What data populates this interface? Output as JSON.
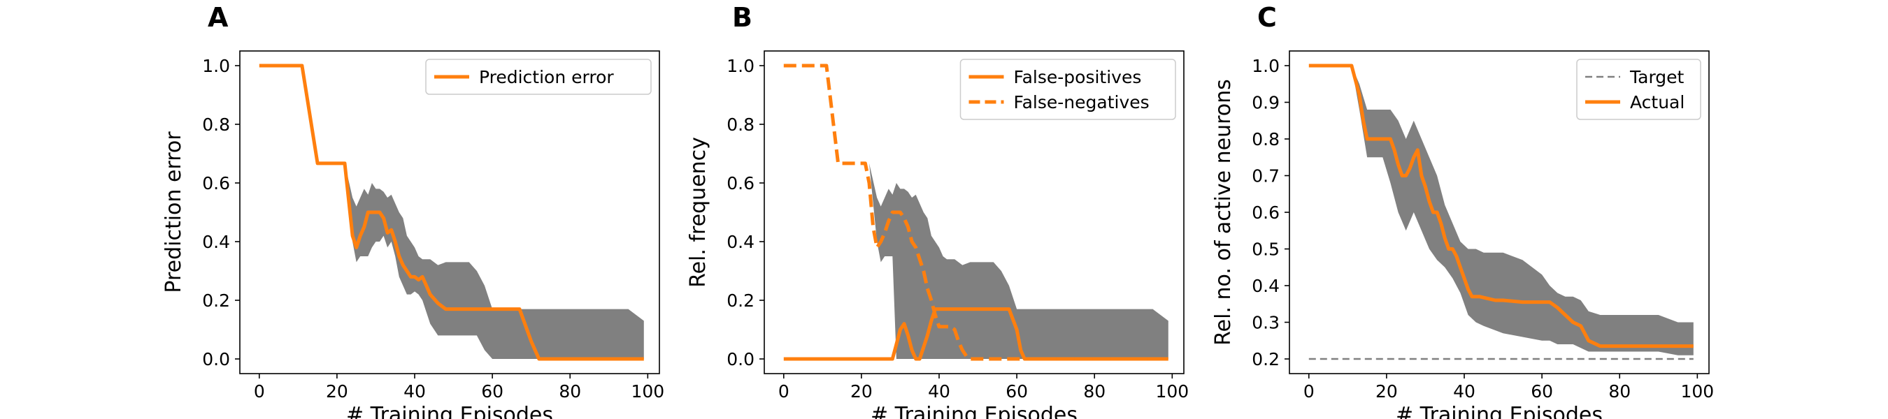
{
  "chart_data": [
    {
      "type": "line",
      "panel_label": "A",
      "xlabel": "# Training Episodes",
      "ylabel": "Prediction error",
      "xlim": [
        -5,
        103
      ],
      "ylim": [
        -0.05,
        1.05
      ],
      "xticks": [
        0,
        20,
        40,
        60,
        80,
        100
      ],
      "xtick_labels": [
        "0",
        "20",
        "40",
        "60",
        "80",
        "100"
      ],
      "yticks": [
        0.0,
        0.2,
        0.4,
        0.6,
        0.8,
        1.0
      ],
      "ytick_labels": [
        "0.0",
        "0.2",
        "0.4",
        "0.6",
        "0.8",
        "1.0"
      ],
      "legend_position": "top-right",
      "band": {
        "color": "#808080",
        "x": [
          0,
          11,
          15,
          21,
          22,
          24,
          25,
          26,
          27,
          28,
          29,
          30,
          31,
          32,
          33,
          34,
          35,
          36,
          37,
          38,
          39,
          40,
          41,
          42,
          44,
          46,
          48,
          50,
          52,
          54,
          56,
          58,
          60,
          62,
          64,
          66,
          68,
          70,
          72,
          75,
          80,
          85,
          90,
          95,
          99
        ],
        "upper": [
          1.0,
          1.0,
          0.667,
          0.667,
          0.667,
          0.55,
          0.52,
          0.55,
          0.58,
          0.56,
          0.6,
          0.58,
          0.58,
          0.57,
          0.55,
          0.56,
          0.53,
          0.5,
          0.48,
          0.42,
          0.4,
          0.38,
          0.35,
          0.34,
          0.34,
          0.32,
          0.33,
          0.33,
          0.33,
          0.33,
          0.3,
          0.25,
          0.17,
          0.17,
          0.17,
          0.17,
          0.17,
          0.17,
          0.17,
          0.17,
          0.17,
          0.17,
          0.17,
          0.17,
          0.13
        ],
        "lower": [
          1.0,
          1.0,
          0.667,
          0.667,
          0.667,
          0.4,
          0.33,
          0.35,
          0.35,
          0.35,
          0.38,
          0.4,
          0.4,
          0.42,
          0.38,
          0.4,
          0.35,
          0.28,
          0.25,
          0.22,
          0.22,
          0.23,
          0.22,
          0.2,
          0.12,
          0.08,
          0.08,
          0.08,
          0.08,
          0.08,
          0.08,
          0.03,
          0.0,
          0.0,
          0.0,
          0.0,
          0.0,
          0.0,
          0.0,
          0.0,
          0.0,
          0.0,
          0.0,
          0.0,
          0.0
        ]
      },
      "series": [
        {
          "name": "Prediction error",
          "color": "#ff7f0e",
          "style": "solid",
          "x": [
            0,
            11,
            15,
            21,
            22,
            24,
            25,
            26,
            27,
            28,
            29,
            30,
            31,
            32,
            33,
            34,
            35,
            36,
            37,
            38,
            39,
            40,
            41,
            42,
            43,
            44,
            46,
            48,
            50,
            55,
            60,
            65,
            67,
            70,
            72,
            80,
            90,
            99
          ],
          "y": [
            1.0,
            1.0,
            0.667,
            0.667,
            0.667,
            0.42,
            0.38,
            0.42,
            0.45,
            0.5,
            0.5,
            0.5,
            0.5,
            0.48,
            0.43,
            0.44,
            0.4,
            0.35,
            0.32,
            0.3,
            0.28,
            0.28,
            0.27,
            0.28,
            0.25,
            0.22,
            0.19,
            0.17,
            0.17,
            0.17,
            0.17,
            0.17,
            0.17,
            0.06,
            0.0,
            0.0,
            0.0,
            0.0
          ]
        }
      ]
    },
    {
      "type": "line",
      "panel_label": "B",
      "xlabel": "# Training Episodes",
      "ylabel": "Rel. frequency",
      "xlim": [
        -5,
        103
      ],
      "ylim": [
        -0.05,
        1.05
      ],
      "xticks": [
        0,
        20,
        40,
        60,
        80,
        100
      ],
      "xtick_labels": [
        "0",
        "20",
        "40",
        "60",
        "80",
        "100"
      ],
      "yticks": [
        0.0,
        0.2,
        0.4,
        0.6,
        0.8,
        1.0
      ],
      "ytick_labels": [
        "0.0",
        "0.2",
        "0.4",
        "0.6",
        "0.8",
        "1.0"
      ],
      "legend_position": "top-right",
      "band": {
        "color": "#808080",
        "x": [
          0,
          11,
          15,
          21,
          22,
          24,
          25,
          26,
          27,
          28,
          29,
          30,
          31,
          32,
          33,
          34,
          35,
          36,
          37,
          38,
          39,
          40,
          41,
          42,
          44,
          46,
          48,
          50,
          52,
          54,
          56,
          58,
          60,
          62,
          64,
          66,
          68,
          70,
          72,
          75,
          80,
          85,
          90,
          95,
          99
        ],
        "upper": [
          1.0,
          1.0,
          0.667,
          0.667,
          0.667,
          0.55,
          0.52,
          0.55,
          0.58,
          0.56,
          0.6,
          0.58,
          0.58,
          0.57,
          0.55,
          0.56,
          0.53,
          0.5,
          0.48,
          0.42,
          0.4,
          0.38,
          0.35,
          0.34,
          0.34,
          0.32,
          0.33,
          0.33,
          0.33,
          0.33,
          0.3,
          0.25,
          0.17,
          0.17,
          0.17,
          0.17,
          0.17,
          0.17,
          0.17,
          0.17,
          0.17,
          0.17,
          0.17,
          0.17,
          0.13
        ],
        "lower": [
          1.0,
          1.0,
          0.667,
          0.667,
          0.667,
          0.4,
          0.33,
          0.35,
          0.35,
          0.35,
          0.0,
          0.0,
          0.0,
          0.0,
          0.0,
          0.0,
          0.0,
          0.0,
          0.0,
          0.0,
          0.0,
          0.0,
          0.0,
          0.0,
          0.0,
          0.0,
          0.0,
          0.0,
          0.0,
          0.0,
          0.0,
          0.0,
          0.0,
          0.0,
          0.0,
          0.0,
          0.0,
          0.0,
          0.0,
          0.0,
          0.0,
          0.0,
          0.0,
          0.0,
          0.0
        ]
      },
      "series": [
        {
          "name": "False-positives",
          "color": "#ff7f0e",
          "style": "solid",
          "x": [
            0,
            27,
            28,
            29,
            30,
            31,
            32,
            33,
            34,
            35,
            36,
            37,
            38,
            39,
            40,
            45,
            50,
            55,
            58,
            60,
            61,
            62,
            70,
            80,
            90,
            99
          ],
          "y": [
            0.0,
            0.0,
            0.0,
            0.05,
            0.1,
            0.12,
            0.08,
            0.03,
            0.0,
            0.0,
            0.04,
            0.08,
            0.13,
            0.17,
            0.17,
            0.17,
            0.17,
            0.17,
            0.17,
            0.1,
            0.03,
            0.0,
            0.0,
            0.0,
            0.0,
            0.0
          ]
        },
        {
          "name": "False-negatives",
          "color": "#ff7f0e",
          "style": "dashed",
          "x": [
            0,
            11,
            14,
            21,
            22,
            23,
            24,
            25,
            26,
            27,
            28,
            29,
            30,
            31,
            32,
            33,
            34,
            35,
            36,
            37,
            38,
            39,
            40,
            41,
            42,
            43,
            44,
            45,
            46,
            47,
            48,
            50,
            55,
            99
          ],
          "y": [
            1.0,
            1.0,
            0.667,
            0.667,
            0.6,
            0.45,
            0.38,
            0.4,
            0.43,
            0.47,
            0.5,
            0.5,
            0.5,
            0.48,
            0.45,
            0.4,
            0.38,
            0.34,
            0.3,
            0.24,
            0.2,
            0.15,
            0.11,
            0.11,
            0.11,
            0.11,
            0.1,
            0.06,
            0.03,
            0.01,
            0.0,
            0.0,
            0.0,
            0.0
          ]
        }
      ]
    },
    {
      "type": "line",
      "panel_label": "C",
      "xlabel": "# Training Episodes",
      "ylabel": "Rel. no. of active neurons",
      "xlim": [
        -5,
        103
      ],
      "ylim": [
        0.16,
        1.04
      ],
      "xticks": [
        0,
        20,
        40,
        60,
        80,
        100
      ],
      "xtick_labels": [
        "0",
        "20",
        "40",
        "60",
        "80",
        "100"
      ],
      "yticks": [
        0.2,
        0.3,
        0.4,
        0.5,
        0.6,
        0.7,
        0.8,
        0.9,
        1.0
      ],
      "ytick_labels": [
        "0.2",
        "0.3",
        "0.4",
        "0.5",
        "0.6",
        "0.7",
        "0.8",
        "0.9",
        "1.0"
      ],
      "legend_position": "top-right",
      "band": {
        "color": "#808080",
        "x": [
          0,
          11,
          13,
          15,
          17,
          19,
          21,
          23,
          25,
          27,
          29,
          31,
          33,
          35,
          37,
          39,
          41,
          43,
          45,
          50,
          55,
          60,
          62,
          64,
          66,
          68,
          70,
          72,
          75,
          80,
          85,
          90,
          95,
          99
        ],
        "upper": [
          1.0,
          1.0,
          0.95,
          0.88,
          0.88,
          0.88,
          0.88,
          0.85,
          0.8,
          0.85,
          0.8,
          0.75,
          0.7,
          0.62,
          0.57,
          0.52,
          0.5,
          0.5,
          0.49,
          0.49,
          0.47,
          0.43,
          0.4,
          0.38,
          0.37,
          0.37,
          0.36,
          0.33,
          0.32,
          0.32,
          0.32,
          0.32,
          0.3,
          0.3
        ],
        "lower": [
          1.0,
          1.0,
          0.88,
          0.75,
          0.75,
          0.75,
          0.68,
          0.6,
          0.55,
          0.6,
          0.55,
          0.5,
          0.47,
          0.45,
          0.42,
          0.38,
          0.32,
          0.3,
          0.29,
          0.27,
          0.26,
          0.25,
          0.25,
          0.24,
          0.24,
          0.24,
          0.23,
          0.22,
          0.22,
          0.22,
          0.22,
          0.22,
          0.21,
          0.21
        ]
      },
      "series": [
        {
          "name": "Target",
          "color": "#808080",
          "style": "dashed",
          "x": [
            0,
            99
          ],
          "y": [
            0.2,
            0.2
          ]
        },
        {
          "name": "Actual",
          "color": "#ff7f0e",
          "style": "solid",
          "x": [
            0,
            11,
            13,
            14,
            15,
            16,
            17,
            18,
            19,
            20,
            21,
            22,
            23,
            24,
            25,
            26,
            27,
            28,
            29,
            30,
            31,
            32,
            33,
            34,
            35,
            36,
            37,
            38,
            39,
            40,
            41,
            42,
            44,
            46,
            48,
            50,
            55,
            60,
            62,
            64,
            66,
            68,
            70,
            72,
            75,
            80,
            90,
            99
          ],
          "y": [
            1.0,
            1.0,
            0.92,
            0.85,
            0.8,
            0.8,
            0.8,
            0.8,
            0.8,
            0.8,
            0.8,
            0.77,
            0.73,
            0.7,
            0.7,
            0.72,
            0.75,
            0.77,
            0.7,
            0.67,
            0.63,
            0.6,
            0.6,
            0.57,
            0.53,
            0.5,
            0.5,
            0.48,
            0.45,
            0.42,
            0.39,
            0.37,
            0.37,
            0.365,
            0.36,
            0.36,
            0.355,
            0.355,
            0.355,
            0.34,
            0.32,
            0.3,
            0.29,
            0.25,
            0.235,
            0.235,
            0.235,
            0.235
          ]
        }
      ]
    }
  ]
}
